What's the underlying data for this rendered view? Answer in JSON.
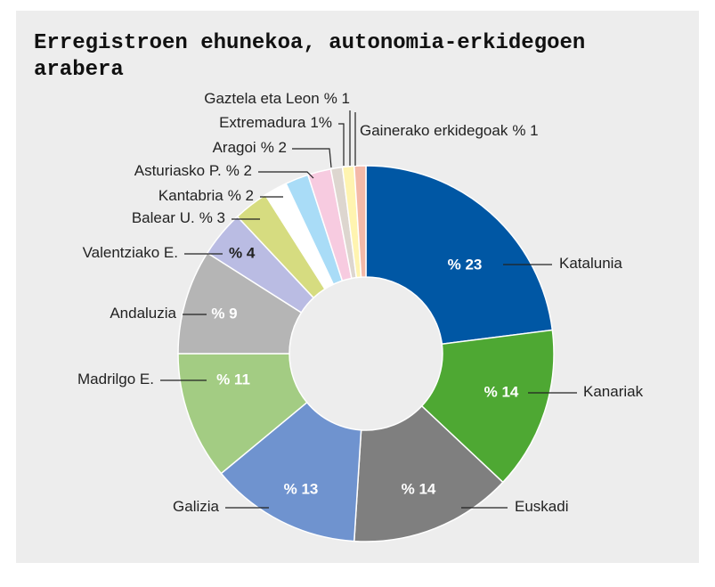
{
  "chart_data": {
    "type": "donut",
    "title": "Erregistroen ehunekoa, autonomia-erkidegoen arabera",
    "categories": [
      "Katalunia",
      "Kanariak",
      "Euskadi",
      "Galizia",
      "Madrilgo E.",
      "Andaluzia",
      "Valentziako E.",
      "Balear U.",
      "Kantabria",
      "Asturiasko P.",
      "Aragoi",
      "Extremadura",
      "Gaztela eta Leon",
      "Gainerako erkidegoak"
    ],
    "values": [
      23,
      14,
      14,
      13,
      11,
      9,
      4,
      3,
      2,
      2,
      2,
      1,
      1,
      1
    ],
    "value_labels": [
      "% 23",
      "% 14",
      "% 14",
      "% 13",
      "% 11",
      "% 9",
      "% 4",
      "% 3",
      "% 2",
      "% 2",
      "% 2",
      "1%",
      "% 1",
      "% 1"
    ],
    "colors": [
      "#0057a4",
      "#4ea833",
      "#7f7f7f",
      "#6f93cf",
      "#a3cc83",
      "#b5b5b5",
      "#babce3",
      "#d6dc80",
      "#ffffff",
      "#a9dcf7",
      "#f7cbe0",
      "#ddd6cf",
      "#fff4b0",
      "#f4b9a8"
    ]
  }
}
